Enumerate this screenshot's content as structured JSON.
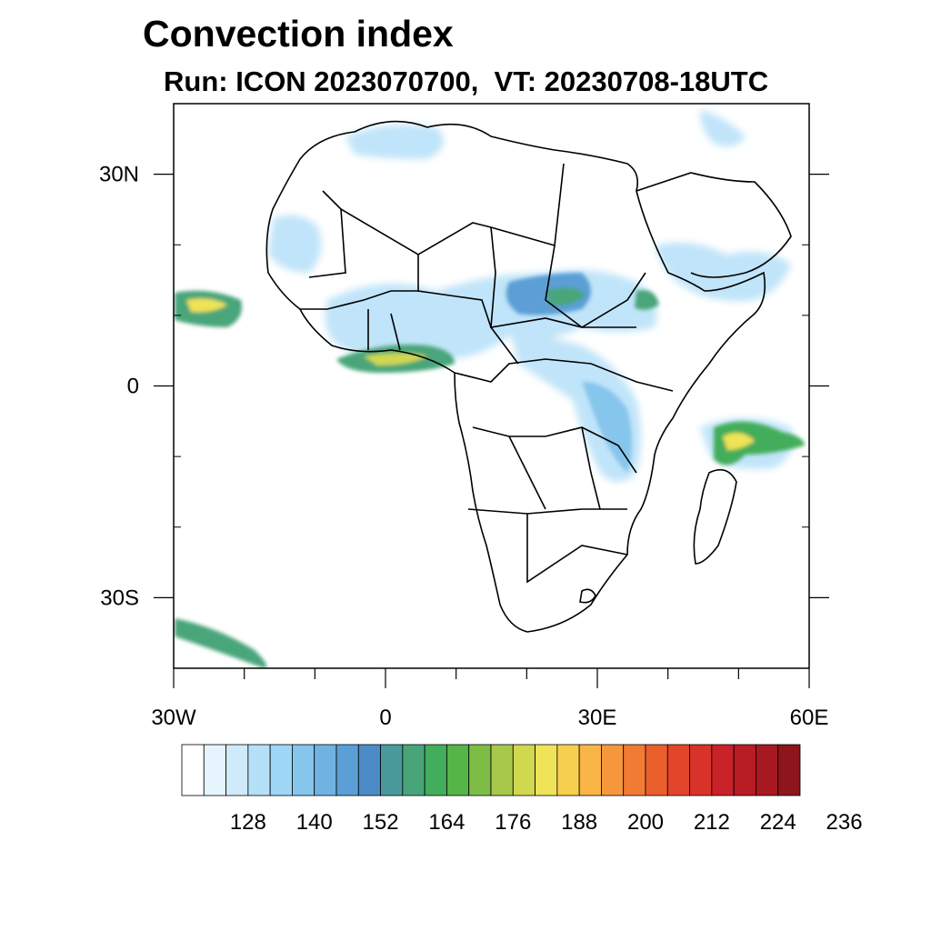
{
  "title": "Convection index",
  "subtitle": "Run: ICON 2023070700,  VT: 20230708-18UTC",
  "map": {
    "lon_range": [
      -30,
      60
    ],
    "lat_range": [
      -40,
      40
    ],
    "lon_ticks": [
      {
        "value": -30,
        "label": "30W"
      },
      {
        "value": 0,
        "label": "0"
      },
      {
        "value": 30,
        "label": "30E"
      },
      {
        "value": 60,
        "label": "60E"
      }
    ],
    "lat_ticks": [
      {
        "value": 30,
        "label": "30N"
      },
      {
        "value": 0,
        "label": "0"
      },
      {
        "value": -30,
        "label": "30S"
      }
    ],
    "coastline_color": "#000000",
    "background": "#ffffff"
  },
  "colorbar": {
    "labels": [
      "128",
      "140",
      "152",
      "164",
      "176",
      "188",
      "200",
      "212",
      "224",
      "236"
    ],
    "colors": [
      "#ffffff",
      "#e6f5fd",
      "#cfeafa",
      "#b6e0f8",
      "#9ed6f5",
      "#86c5ec",
      "#70b3e3",
      "#5b9fd6",
      "#4b8cc6",
      "#4a9a9b",
      "#48a57a",
      "#42ad5a",
      "#55b547",
      "#7dbd46",
      "#a8c84b",
      "#d1d74f",
      "#efe357",
      "#f7cf4f",
      "#f8b545",
      "#f6973c",
      "#f17b33",
      "#eb5f2d",
      "#e2452a",
      "#d93229",
      "#c92228",
      "#b81c24",
      "#a71820",
      "#8d151b"
    ]
  }
}
